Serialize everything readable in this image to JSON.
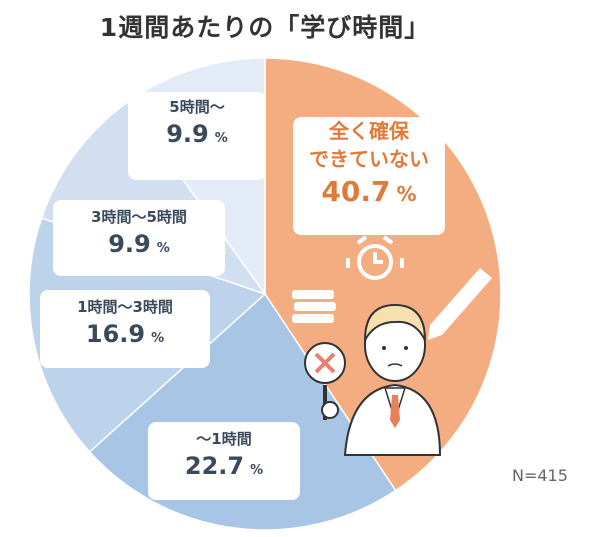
{
  "chart_data": {
    "type": "pie",
    "title": "1週間あたりの「学び時間」",
    "unit": "%",
    "slices": [
      {
        "label_lines": [
          "全く確保",
          "できていない"
        ],
        "value": 40.7,
        "color": "#f4ad80"
      },
      {
        "label_lines": [
          "～1時間"
        ],
        "value": 22.7,
        "color": "#a8c5e5"
      },
      {
        "label_lines": [
          "1時間～3時間"
        ],
        "value": 16.9,
        "color": "#bdd3ec"
      },
      {
        "label_lines": [
          "3時間～5時間"
        ],
        "value": 9.9,
        "color": "#d2dff0"
      },
      {
        "label_lines": [
          "5時間～"
        ],
        "value": 9.9,
        "color": "#e2ebf6"
      }
    ],
    "start": "top",
    "direction": "clockwise",
    "note": "N=415"
  }
}
